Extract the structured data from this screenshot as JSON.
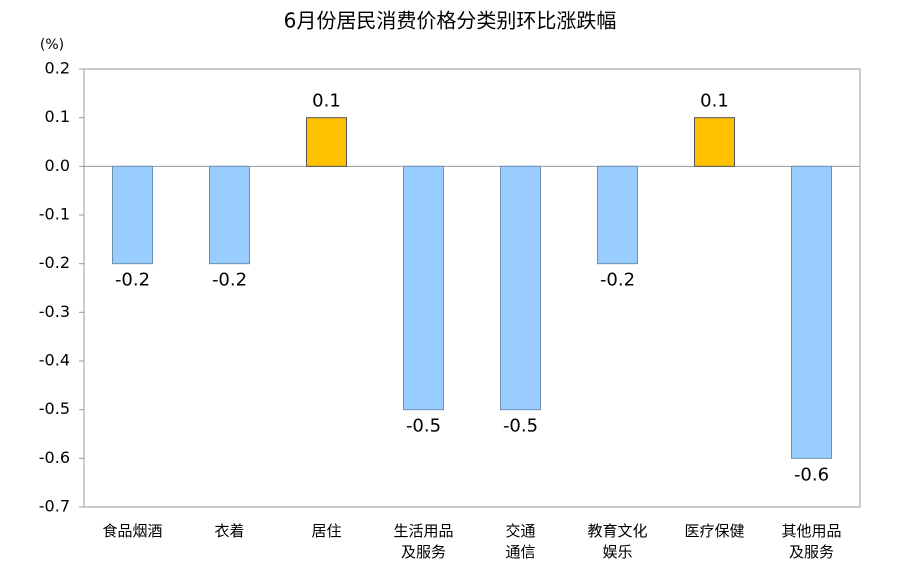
{
  "chart_data": {
    "type": "bar",
    "title": "6月份居民消费价格分类别环比涨跌幅",
    "y_label": "(%)",
    "categories": [
      "食品烟酒",
      "衣着",
      "居住",
      "生活用品\n及服务",
      "交通\n通信",
      "教育文化\n娱乐",
      "医疗保健",
      "其他用品\n及服务"
    ],
    "values": [
      -0.2,
      -0.2,
      0.1,
      -0.5,
      -0.5,
      -0.2,
      0.1,
      -0.6
    ],
    "colors": [
      "#99ccff",
      "#99ccff",
      "#ffc000",
      "#99ccff",
      "#99ccff",
      "#99ccff",
      "#ffc000",
      "#99ccff"
    ],
    "ylim": [
      -0.7,
      0.2
    ],
    "yticks": [
      -0.7,
      -0.6,
      -0.5,
      -0.4,
      -0.3,
      -0.2,
      -0.1,
      {
        "value": 0,
        "label": "0.0"
      },
      0.1,
      0.2
    ],
    "grid": false
  }
}
